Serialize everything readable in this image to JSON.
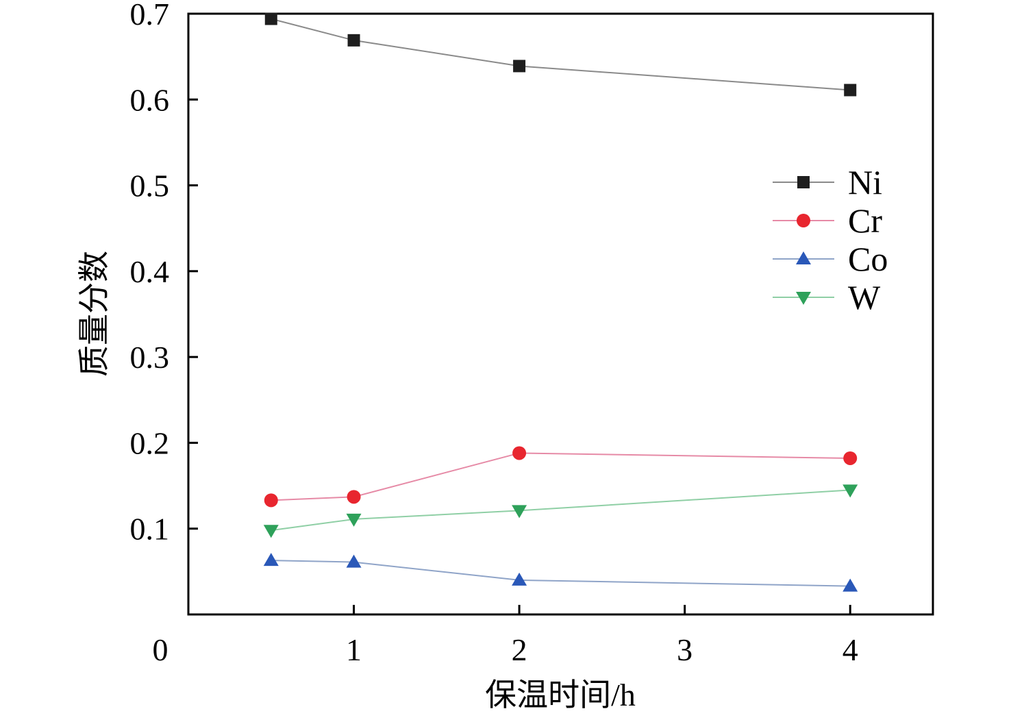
{
  "colors": {
    "Ni": "#1e1e1e",
    "Cr": "#e8262f",
    "Co": "#2a58b8",
    "W": "#2ea15a",
    "Ni_line": "#8a8a8a",
    "Cr_line": "#e68aa6",
    "Co_line": "#8fa4c8",
    "W_line": "#8fcfa5"
  },
  "chart_data": {
    "type": "line",
    "xlabel": "保温时间/h",
    "ylabel": "质量分数",
    "x_tick_labels": [
      "0",
      "1",
      "2",
      "3",
      "4"
    ],
    "y_tick_labels": [
      "0.1",
      "0.2",
      "0.3",
      "0.4",
      "0.5",
      "0.6",
      "0.7"
    ],
    "y_ticks": [
      0.1,
      0.2,
      0.3,
      0.4,
      0.5,
      0.6,
      0.7
    ],
    "xlim": [
      0,
      4.5
    ],
    "ylim": [
      0,
      0.7
    ],
    "x": [
      0.5,
      1,
      2,
      4
    ],
    "series": [
      {
        "name": "Ni",
        "marker": "square",
        "values": [
          0.694,
          0.669,
          0.639,
          0.611
        ]
      },
      {
        "name": "Cr",
        "marker": "circle",
        "values": [
          0.133,
          0.137,
          0.188,
          0.182
        ]
      },
      {
        "name": "Co",
        "marker": "triangle-up",
        "values": [
          0.063,
          0.061,
          0.04,
          0.033
        ]
      },
      {
        "name": "W",
        "marker": "triangle-down",
        "values": [
          0.098,
          0.111,
          0.121,
          0.145
        ]
      }
    ],
    "legend_position": "upper-right",
    "grid": false
  }
}
